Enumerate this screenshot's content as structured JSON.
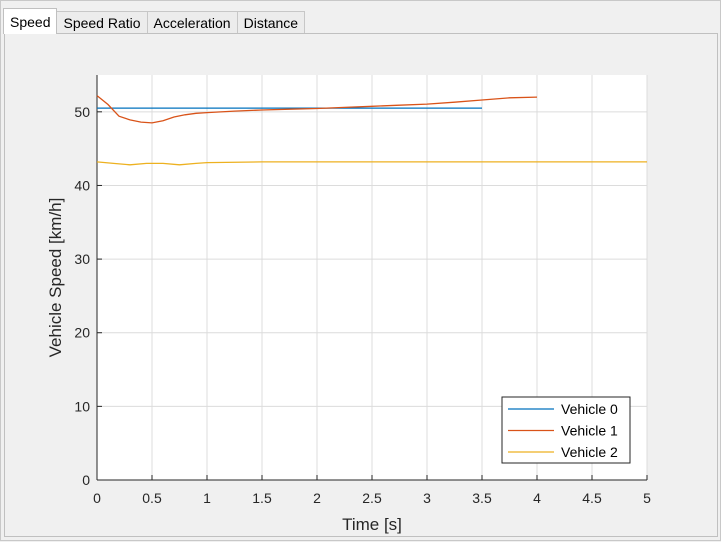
{
  "tabs": [
    {
      "label": "Speed",
      "active": true
    },
    {
      "label": "Speed Ratio",
      "active": false
    },
    {
      "label": "Acceleration",
      "active": false
    },
    {
      "label": "Distance",
      "active": false
    }
  ],
  "chart_data": {
    "type": "line",
    "title": "",
    "xlabel": "Time [s]",
    "ylabel": "Vehicle Speed [km/h]",
    "xlim": [
      0,
      5
    ],
    "ylim": [
      0,
      55
    ],
    "xticks": [
      "0",
      "0.5",
      "1",
      "1.5",
      "2",
      "2.5",
      "3",
      "3.5",
      "4",
      "4.5",
      "5"
    ],
    "yticks": [
      "0",
      "10",
      "20",
      "30",
      "40",
      "50"
    ],
    "grid": true,
    "legend_position": "bottom-right",
    "series": [
      {
        "name": "Vehicle 0",
        "color": "#0072bd",
        "x": [
          0,
          0.5,
          1,
          1.5,
          2,
          2.5,
          3,
          3.5
        ],
        "y": [
          50.5,
          50.5,
          50.5,
          50.5,
          50.5,
          50.5,
          50.5,
          50.5
        ]
      },
      {
        "name": "Vehicle 1",
        "color": "#d95319",
        "x": [
          0,
          0.1,
          0.2,
          0.3,
          0.4,
          0.5,
          0.6,
          0.7,
          0.8,
          0.9,
          1.0,
          1.25,
          1.5,
          1.75,
          2.0,
          2.25,
          2.5,
          2.75,
          3.0,
          3.25,
          3.5,
          3.75,
          4.0
        ],
        "y": [
          52.2,
          51.0,
          49.4,
          48.9,
          48.6,
          48.5,
          48.8,
          49.3,
          49.6,
          49.8,
          49.9,
          50.1,
          50.25,
          50.35,
          50.45,
          50.6,
          50.75,
          50.9,
          51.05,
          51.3,
          51.6,
          51.9,
          52.0
        ]
      },
      {
        "name": "Vehicle 2",
        "color": "#edb120",
        "x": [
          0,
          0.15,
          0.3,
          0.45,
          0.6,
          0.75,
          0.9,
          1.0,
          1.5,
          2.0,
          2.5,
          3.0,
          3.5,
          4.0,
          4.5,
          5.0
        ],
        "y": [
          43.2,
          43.0,
          42.8,
          43.0,
          43.0,
          42.8,
          43.0,
          43.1,
          43.2,
          43.2,
          43.2,
          43.2,
          43.2,
          43.2,
          43.2,
          43.2
        ]
      }
    ]
  }
}
